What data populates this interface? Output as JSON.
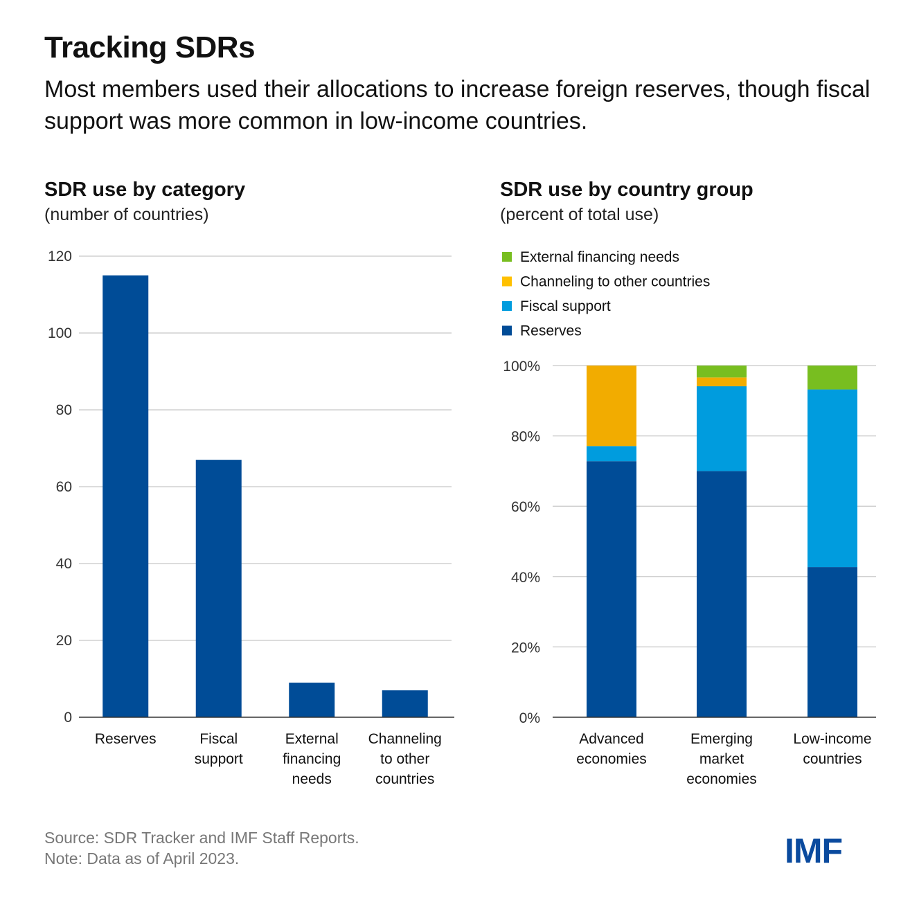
{
  "header": {
    "title": "Tracking SDRs",
    "subtitle": "Most members used their allocations to increase foreign reserves, though fiscal support was more common in low-income countries."
  },
  "chart_data": [
    {
      "type": "bar",
      "title": "SDR use by category",
      "subtitle": "(number of countries)",
      "xlabel": "",
      "ylabel": "",
      "categories": [
        [
          "Reserves"
        ],
        [
          "Fiscal",
          "support"
        ],
        [
          "External",
          "financing",
          "needs"
        ],
        [
          "Channeling",
          "to other",
          "countries"
        ]
      ],
      "values": [
        115,
        67,
        9,
        7
      ],
      "ylim": [
        0,
        120
      ],
      "yticks": [
        0,
        20,
        40,
        60,
        80,
        100,
        120
      ],
      "grid": true,
      "color": "#004c97"
    },
    {
      "type": "bar",
      "stacked": true,
      "title": "SDR use by country group",
      "subtitle": "(percent of total use)",
      "categories": [
        [
          "Advanced",
          "economies"
        ],
        [
          "Emerging",
          "market",
          "economies"
        ],
        [
          "Low-income",
          "countries"
        ]
      ],
      "ylim": [
        0,
        100
      ],
      "yticks": [
        0,
        20,
        40,
        60,
        80,
        100
      ],
      "ytick_labels": [
        "0%",
        "20%",
        "40%",
        "60%",
        "80%",
        "100%"
      ],
      "grid": true,
      "legend_position": "top-left",
      "series": [
        {
          "name": "Reserves",
          "color": "#004c97",
          "values": [
            72.8,
            70.0,
            42.7
          ]
        },
        {
          "name": "Fiscal support",
          "color": "#009cde",
          "values": [
            4.3,
            24.1,
            50.5
          ]
        },
        {
          "name": "Channeling to other countries",
          "color": "#f2ac00",
          "values": [
            22.9,
            2.5,
            0
          ]
        },
        {
          "name": "External financing needs",
          "color": "#78be20",
          "values": [
            0,
            3.4,
            6.8
          ]
        }
      ],
      "legend_order": [
        "External financing needs",
        "Channeling to other countries",
        "Fiscal support",
        "Reserves"
      ]
    }
  ],
  "footer": {
    "source": "Source: SDR Tracker and IMF Staff Reports.",
    "note": "Note: Data as of April 2023."
  },
  "logo": "IMF"
}
